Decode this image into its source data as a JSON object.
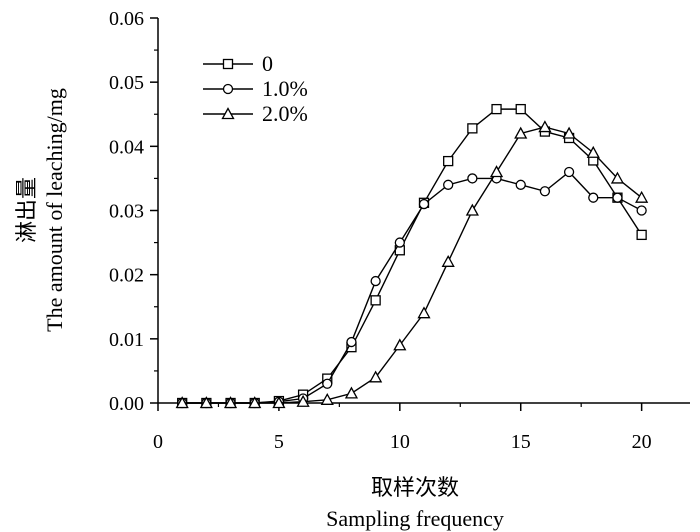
{
  "chart_data": {
    "type": "line",
    "xlabel": "取样次数",
    "xlabel_en": "Sampling frequency",
    "ylabel": "淋出量",
    "ylabel_en_line1": "The amount of leaching/mg",
    "xlim": [
      0,
      22
    ],
    "ylim": [
      0,
      0.06
    ],
    "x_ticks": [
      "0",
      "5",
      "10",
      "15",
      "20"
    ],
    "y_ticks": [
      "0.00",
      "0.01",
      "0.02",
      "0.03",
      "0.04",
      "0.05",
      "0.06"
    ],
    "x": [
      1,
      2,
      3,
      4,
      5,
      6,
      7,
      8,
      9,
      10,
      11,
      12,
      13,
      14,
      15,
      16,
      17,
      18,
      19,
      20
    ],
    "legend_position": "top-left",
    "series": [
      {
        "name": "0",
        "marker": "square",
        "values": [
          0.0,
          0.0,
          0.0,
          0.0,
          0.0003,
          0.0013,
          0.0038,
          0.0087,
          0.016,
          0.0238,
          0.0312,
          0.0377,
          0.0428,
          0.0458,
          0.0458,
          0.0423,
          0.0413,
          0.0378,
          0.032,
          0.0262
        ]
      },
      {
        "name": "1.0%",
        "marker": "circle",
        "values": [
          0.0,
          0.0,
          0.0,
          0.0,
          0.0002,
          0.0007,
          0.003,
          0.0095,
          0.019,
          0.025,
          0.031,
          0.034,
          0.035,
          0.035,
          0.034,
          0.033,
          0.036,
          0.032,
          0.032,
          0.03
        ]
      },
      {
        "name": "2.0%",
        "marker": "triangle",
        "values": [
          0.0,
          0.0,
          0.0,
          0.0,
          0.0,
          0.0002,
          0.0005,
          0.0015,
          0.004,
          0.009,
          0.014,
          0.022,
          0.03,
          0.036,
          0.042,
          0.043,
          0.042,
          0.039,
          0.035,
          0.032
        ]
      }
    ]
  }
}
